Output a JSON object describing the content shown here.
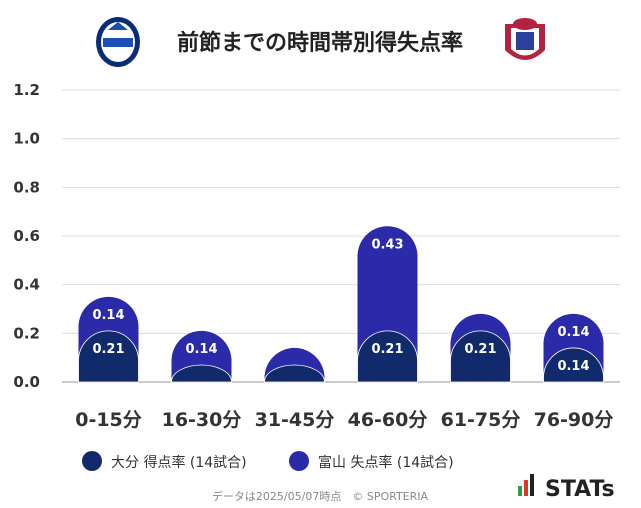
{
  "header": {
    "title": "前節までの時間帯別得失点率",
    "team_left_logo": "oita-trinita-crest",
    "team_right_logo": "kataller-toyama-crest"
  },
  "chart_data": {
    "type": "bar",
    "stacked": true,
    "categories": [
      "0-15分",
      "16-30分",
      "31-45分",
      "46-60分",
      "61-75分",
      "76-90分"
    ],
    "series": [
      {
        "name": "大分 得点率 (14試合)",
        "color": "#102a6b",
        "values": [
          0.21,
          0.07,
          0.07,
          0.21,
          0.21,
          0.14
        ],
        "labels": [
          "0.21",
          "",
          "",
          "0.21",
          "0.21",
          "0.14"
        ]
      },
      {
        "name": "富山 失点率 (14試合)",
        "color": "#2b2aa8",
        "values": [
          0.14,
          0.14,
          0.07,
          0.43,
          0.07,
          0.14
        ],
        "labels": [
          "0.14",
          "0.14",
          "",
          "0.43",
          "",
          "0.14"
        ]
      }
    ],
    "yticks": [
      "0.0",
      "0.2",
      "0.4",
      "0.6",
      "0.8",
      "1.0",
      "1.2"
    ],
    "ylim": [
      0,
      1.2
    ],
    "grid": true,
    "legend_position": "bottom-left"
  },
  "footer": {
    "note": "データは2025/05/07時点　© SPORTERIA",
    "brand": "STATs",
    "brand_icon": "bar-chart-icon"
  }
}
